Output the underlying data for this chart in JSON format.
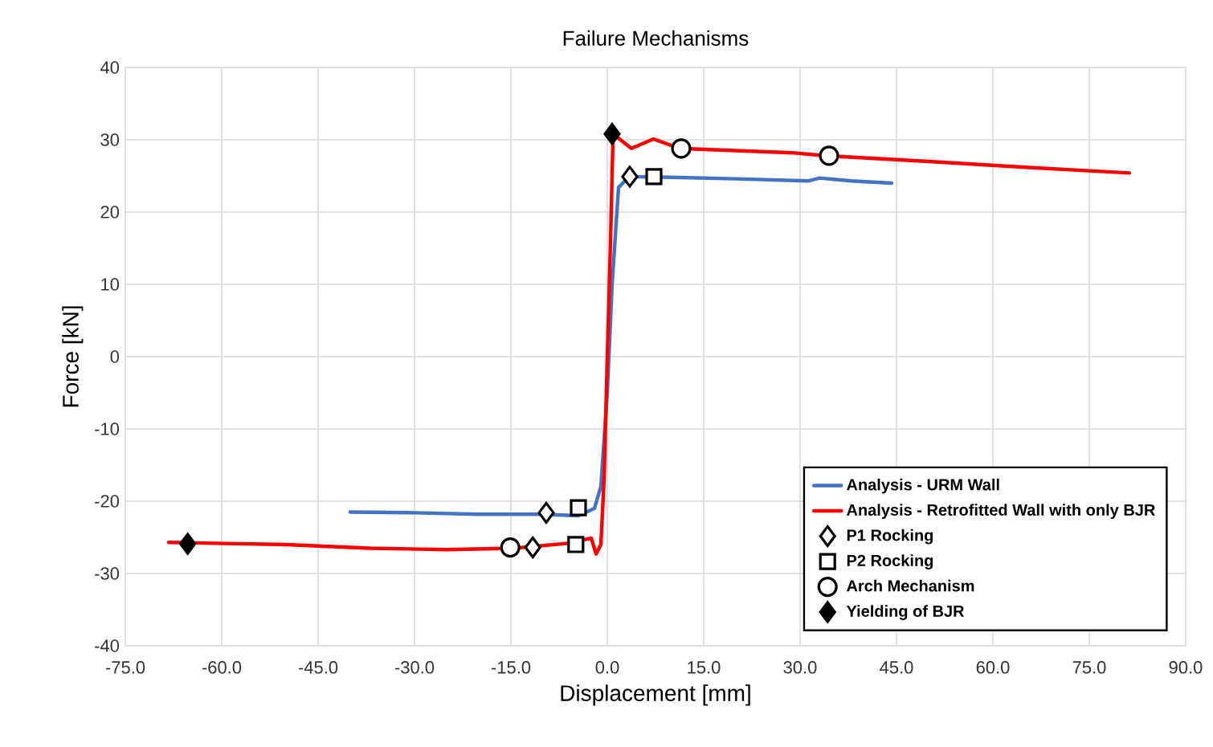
{
  "chart_data": {
    "type": "line",
    "title": "Failure Mechanisms",
    "xlabel": "Displacement [mm]",
    "ylabel": "Force [kN]",
    "xlim": [
      -75,
      90
    ],
    "ylim": [
      -40,
      40
    ],
    "xticks": [
      {
        "value": -75,
        "label": "-75.0"
      },
      {
        "value": -60,
        "label": "-60.0"
      },
      {
        "value": -45,
        "label": "-45.0"
      },
      {
        "value": -30,
        "label": "-30.0"
      },
      {
        "value": -15,
        "label": "-15.0"
      },
      {
        "value": 0,
        "label": "0.0"
      },
      {
        "value": 15,
        "label": "15.0"
      },
      {
        "value": 30,
        "label": "30.0"
      },
      {
        "value": 45,
        "label": "45.0"
      },
      {
        "value": 60,
        "label": "60.0"
      },
      {
        "value": 75,
        "label": "75.0"
      },
      {
        "value": 90,
        "label": "90.0"
      }
    ],
    "yticks": [
      -40,
      -30,
      -20,
      -10,
      0,
      10,
      20,
      30,
      40
    ],
    "grid": true,
    "legend": "bottom right",
    "series": [
      {
        "name": "Analysis - URM Wall",
        "color": "#4472c4",
        "marker": "none",
        "x": [
          -40,
          -30,
          -20,
          -10.8,
          -4.5,
          -2,
          -1,
          0,
          0.75,
          1.75,
          3.4,
          10,
          20,
          31.25,
          33,
          38,
          44.25
        ],
        "values": [
          -21.5,
          -21.6,
          -21.8,
          -21.8,
          -22,
          -21,
          -18,
          -5,
          10,
          23.4,
          24.9,
          24.8,
          24.6,
          24.3,
          24.7,
          24.3,
          24
        ]
      },
      {
        "name": "Analysis - Retrofitted Wall with only BJR",
        "color": "#ff0000",
        "marker": "none",
        "x": [
          -68.25,
          -50,
          -37,
          -25,
          -14.5,
          -5.75,
          -2.5,
          -1.75,
          -1,
          -0.5,
          0,
          0.5,
          0.9,
          3.75,
          7.2,
          11.25,
          20,
          28.75,
          33.75,
          50,
          65,
          81.25
        ],
        "values": [
          -25.7,
          -26,
          -26.5,
          -26.7,
          -26.5,
          -25.8,
          -25.1,
          -27.3,
          -26,
          -17,
          0,
          16,
          30.8,
          28.8,
          30.1,
          28.8,
          28.5,
          28.2,
          27.8,
          27,
          26.2,
          25.4
        ]
      },
      {
        "name": "P1 Rocking",
        "type": "scatter",
        "color": "#ffffff",
        "marker": "diamond",
        "x": [
          3.5,
          -9.5,
          -11.6
        ],
        "values": [
          24.9,
          -21.6,
          -26.4
        ]
      },
      {
        "name": "P2 Rocking",
        "type": "scatter",
        "color": "#ffffff",
        "marker": "square",
        "x": [
          7.25,
          -4.5,
          -4.9
        ],
        "values": [
          24.9,
          -20.9,
          -26
        ]
      },
      {
        "name": "Arch Mechanism",
        "type": "scatter",
        "color": "#ffffff",
        "marker": "circle",
        "x": [
          11.5,
          34.5,
          -15.1
        ],
        "values": [
          28.8,
          27.8,
          -26.4
        ]
      },
      {
        "name": "Yielding of BJR",
        "type": "scatter",
        "color": "#000000",
        "marker": "diamond",
        "x": [
          -65.3,
          0.75
        ],
        "values": [
          -25.9,
          30.8
        ]
      }
    ]
  }
}
